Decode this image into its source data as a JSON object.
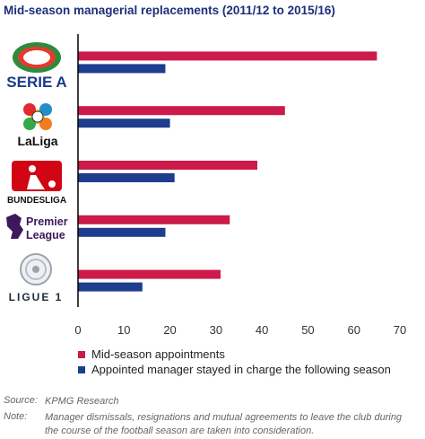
{
  "title": "Mid-season managerial replacements  (2011/12 to 2015/16)",
  "colors": {
    "series1": "#cc1a4a",
    "series2": "#1f3d8f",
    "axis": "#000000",
    "title": "#1d2f7a"
  },
  "chart_data": {
    "type": "bar",
    "orientation": "horizontal",
    "categories": [
      "SERIE A",
      "LaLiga",
      "BUNDESLIGA",
      "Premier League",
      "LIGUE 1"
    ],
    "series": [
      {
        "name": "Mid-season appointments",
        "values": [
          65,
          45,
          39,
          33,
          31
        ]
      },
      {
        "name": "Appointed manager stayed in charge the following season",
        "values": [
          19,
          20,
          21,
          19,
          14
        ]
      }
    ],
    "xlim": [
      0,
      70
    ],
    "xticks": [
      "0",
      "10",
      "20",
      "30",
      "40",
      "50",
      "60",
      "70"
    ],
    "grid": false,
    "legend_position": "bottom-left"
  },
  "logos": {
    "seriea": "SERIE A",
    "laliga": "LaLiga",
    "bundesliga": "BUNDESLIGA",
    "premier_line1": "Premier",
    "premier_line2": "League",
    "ligue1": "LIGUE 1"
  },
  "legend": [
    "Mid-season appointments",
    "Appointed manager stayed in charge the following season"
  ],
  "footer": {
    "source_label": "Source:",
    "source_text": "KPMG Research",
    "note_label": "Note:",
    "note_text": "Manager dismissals, resignations and mutual agreements to leave the club during the course of the football season are taken into consideration."
  }
}
